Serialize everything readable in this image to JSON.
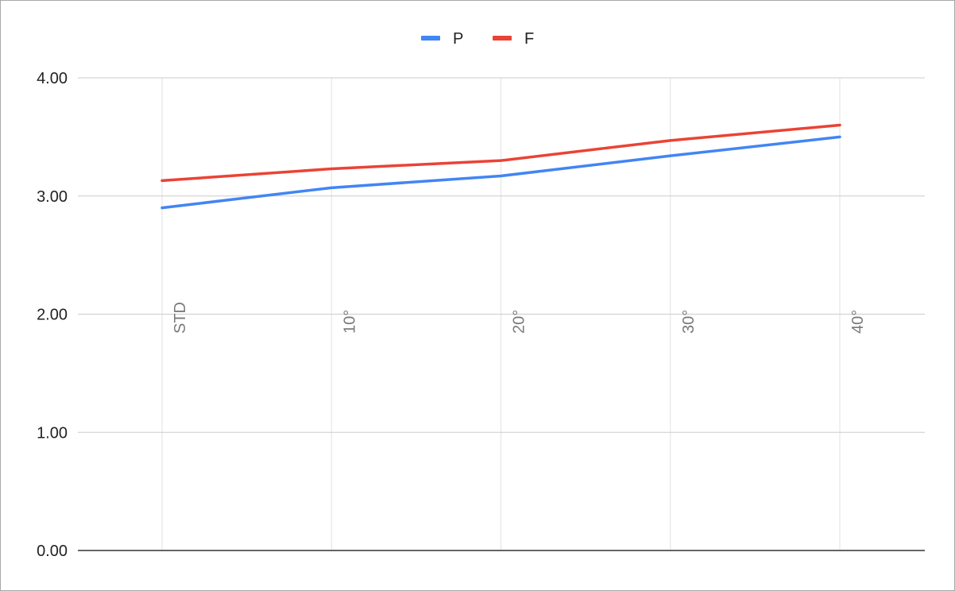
{
  "chart_data": {
    "type": "line",
    "title": "",
    "xlabel": "",
    "ylabel": "",
    "categories": [
      "STD",
      "10°",
      "20°",
      "30°",
      "40°"
    ],
    "series": [
      {
        "name": "P",
        "color": "#4285f4",
        "values": [
          2.9,
          3.07,
          3.17,
          3.34,
          3.5
        ]
      },
      {
        "name": "F",
        "color": "#ea4335",
        "values": [
          3.13,
          3.23,
          3.3,
          3.47,
          3.6
        ]
      }
    ],
    "ylim": [
      0,
      4
    ],
    "yticks": [
      "0.00",
      "1.00",
      "2.00",
      "3.00",
      "4.00"
    ],
    "grid": true,
    "legend_position": "top-center"
  }
}
